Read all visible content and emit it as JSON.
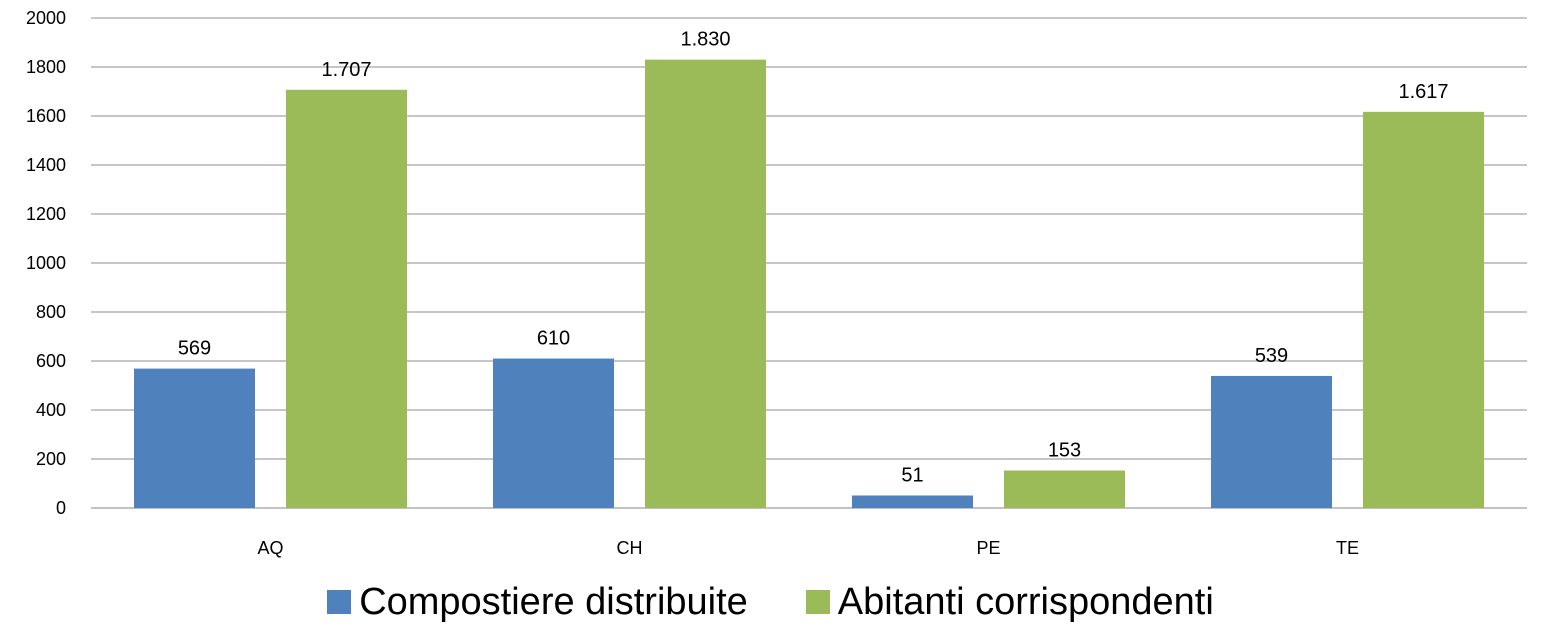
{
  "chart_data": {
    "type": "bar",
    "title": "",
    "xlabel": "",
    "ylabel": "",
    "categories": [
      "AQ",
      "CH",
      "PE",
      "TE"
    ],
    "ylim": [
      0,
      2000
    ],
    "yticks": [
      0,
      200,
      400,
      600,
      800,
      1000,
      1200,
      1400,
      1600,
      1800,
      2000
    ],
    "grid": "horizontal",
    "legend_position": "bottom",
    "series": [
      {
        "name": "Compostiere distribuite",
        "color": "#4F81BD",
        "values": [
          569,
          610,
          51,
          539
        ],
        "labels": [
          "569",
          "610",
          "51",
          "539"
        ]
      },
      {
        "name": "Abitanti corrispondenti",
        "color": "#9BBB59",
        "values": [
          1707,
          1830,
          153,
          1617
        ],
        "labels": [
          "1.707",
          "1.830",
          "153",
          "1.617"
        ]
      }
    ]
  }
}
